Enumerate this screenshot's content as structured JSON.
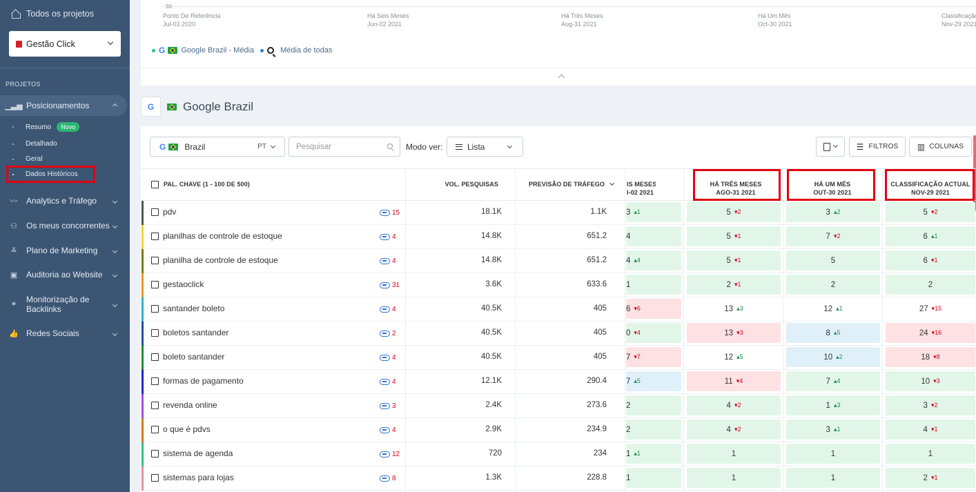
{
  "sidebar": {
    "all_projects": "Todos os projetos",
    "project_name": "Gestão Click",
    "section_label": "PROJETOS",
    "nav": {
      "positions": "Posicionamentos",
      "analytics": "Analytics e Tráfego",
      "competitors": "Os meus concorrentes",
      "marketing": "Plano de Marketing",
      "audit": "Auditoria ao Website",
      "backlinks": "Monitorização de Backlinks",
      "social": "Redes Sociais"
    },
    "sub": {
      "summary": "Resumo",
      "summary_badge": "Novo",
      "detailed": "Detalhado",
      "general": "Geral",
      "historical": "Dados Históricos"
    }
  },
  "chart": {
    "y_tick": "50",
    "x_ticks": [
      {
        "label": "Ponto De Referência",
        "date": "Jul-03 2020"
      },
      {
        "label": "Há Seis Meses",
        "date": "Jun-02 2021"
      },
      {
        "label": "Há Três Meses",
        "date": "Aug-31 2021"
      },
      {
        "label": "Há Um Mês",
        "date": "Oct-30 2021"
      },
      {
        "label": "Classificação",
        "date": "Nov-29 2021"
      }
    ],
    "legend": {
      "google_label": "Google Brazil - Média",
      "average_label": "Média de todas"
    }
  },
  "engine": {
    "title": "Google Brazil",
    "g_letter": "G"
  },
  "toolbar": {
    "country": "Brazil",
    "lang": "PT",
    "search_placeholder": "Pesquisar",
    "view_mode_label": "Modo ver:",
    "view_mode_value": "Lista",
    "filters": "FILTROS",
    "columns": "COLUNAS"
  },
  "table": {
    "headers": {
      "keyword": "PAL. CHAVE (1 - 100 DE 500)",
      "volume": "VOL. PESQUISAS",
      "traffic": "PREVISÃO DE TRÁFEGO",
      "six_months": "IS MESES",
      "six_months_date": "I-02 2021",
      "three_months": "HÁ TRÊS MESES",
      "three_months_date": "AGO-31 2021",
      "one_month": "HÁ UM MÊS",
      "one_month_date": "OUT-30 2021",
      "current": "CLASSIFICAÇÃO ACTUAL",
      "current_date": "NOV-29 2021"
    },
    "rows": [
      {
        "kw": "pdv",
        "links": "15",
        "vol": "18.1K",
        "traffic": "1.1K",
        "bar": "#555555",
        "c6": {
          "v": "3",
          "d": "1",
          "dir": "up",
          "bg": "g"
        },
        "c3": {
          "v": "5",
          "d": "2",
          "dir": "dn",
          "bg": "g"
        },
        "c1": {
          "v": "3",
          "d": "2",
          "dir": "up",
          "bg": "g"
        },
        "cc": {
          "v": "5",
          "d": "2",
          "dir": "dn",
          "bg": "g"
        }
      },
      {
        "kw": "planilhas de controle de estoque",
        "links": "4",
        "vol": "14.8K",
        "traffic": "651.2",
        "bar": "#f2d22e",
        "c6": {
          "v": "4",
          "d": "",
          "dir": "",
          "bg": "g"
        },
        "c3": {
          "v": "5",
          "d": "1",
          "dir": "dn",
          "bg": "g"
        },
        "c1": {
          "v": "7",
          "d": "2",
          "dir": "dn",
          "bg": "g"
        },
        "cc": {
          "v": "6",
          "d": "1",
          "dir": "up",
          "bg": "g"
        }
      },
      {
        "kw": "planilha de controle de estoque",
        "links": "4",
        "vol": "14.8K",
        "traffic": "651.2",
        "bar": "#7a7a1e",
        "c6": {
          "v": "4",
          "d": "4",
          "dir": "up",
          "bg": "g"
        },
        "c3": {
          "v": "5",
          "d": "1",
          "dir": "dn",
          "bg": "g"
        },
        "c1": {
          "v": "5",
          "d": "",
          "dir": "",
          "bg": "g"
        },
        "cc": {
          "v": "6",
          "d": "1",
          "dir": "dn",
          "bg": "g"
        }
      },
      {
        "kw": "gestaoclick",
        "links": "31",
        "vol": "3.6K",
        "traffic": "633.6",
        "bar": "#f0951f",
        "c6": {
          "v": "1",
          "d": "",
          "dir": "",
          "bg": "g"
        },
        "c3": {
          "v": "2",
          "d": "1",
          "dir": "dn",
          "bg": "g"
        },
        "c1": {
          "v": "2",
          "d": "",
          "dir": "",
          "bg": "g"
        },
        "cc": {
          "v": "2",
          "d": "",
          "dir": "",
          "bg": "g"
        }
      },
      {
        "kw": "santander boleto",
        "links": "4",
        "vol": "40.5K",
        "traffic": "405",
        "bar": "#25b5c9",
        "c6": {
          "v": "6",
          "d": "6",
          "dir": "dn",
          "bg": "r"
        },
        "c3": {
          "v": "13",
          "d": "3",
          "dir": "up",
          "bg": ""
        },
        "c1": {
          "v": "12",
          "d": "1",
          "dir": "up",
          "bg": ""
        },
        "cc": {
          "v": "27",
          "d": "15",
          "dir": "dn",
          "bg": ""
        }
      },
      {
        "kw": "boletos santander",
        "links": "2",
        "vol": "40.5K",
        "traffic": "405",
        "bar": "#1f4fa3",
        "c6": {
          "v": "0",
          "d": "4",
          "dir": "dn",
          "bg": "g"
        },
        "c3": {
          "v": "13",
          "d": "3",
          "dir": "dn",
          "bg": "r"
        },
        "c1": {
          "v": "8",
          "d": "5",
          "dir": "up",
          "bg": "b"
        },
        "cc": {
          "v": "24",
          "d": "16",
          "dir": "dn",
          "bg": "r"
        }
      },
      {
        "kw": "boleto santander",
        "links": "4",
        "vol": "40.5K",
        "traffic": "405",
        "bar": "#1e8a2e",
        "c6": {
          "v": "7",
          "d": "7",
          "dir": "dn",
          "bg": "r"
        },
        "c3": {
          "v": "12",
          "d": "5",
          "dir": "up",
          "bg": ""
        },
        "c1": {
          "v": "10",
          "d": "2",
          "dir": "up",
          "bg": "b"
        },
        "cc": {
          "v": "18",
          "d": "8",
          "dir": "dn",
          "bg": "r"
        }
      },
      {
        "kw": "formas de pagamento",
        "links": "4",
        "vol": "12.1K",
        "traffic": "290.4",
        "bar": "#2222cc",
        "c6": {
          "v": "7",
          "d": "5",
          "dir": "up",
          "bg": "b"
        },
        "c3": {
          "v": "11",
          "d": "4",
          "dir": "dn",
          "bg": "r"
        },
        "c1": {
          "v": "7",
          "d": "4",
          "dir": "up",
          "bg": "g"
        },
        "cc": {
          "v": "10",
          "d": "3",
          "dir": "dn",
          "bg": "g"
        }
      },
      {
        "kw": "revenda online",
        "links": "3",
        "vol": "2.4K",
        "traffic": "273.6",
        "bar": "#a64ee0",
        "c6": {
          "v": "2",
          "d": "",
          "dir": "",
          "bg": "g"
        },
        "c3": {
          "v": "4",
          "d": "2",
          "dir": "dn",
          "bg": "g"
        },
        "c1": {
          "v": "1",
          "d": "3",
          "dir": "up",
          "bg": "g"
        },
        "cc": {
          "v": "3",
          "d": "2",
          "dir": "dn",
          "bg": "g"
        }
      },
      {
        "kw": "o que é pdvs",
        "links": "4",
        "vol": "2.9K",
        "traffic": "234.9",
        "bar": "#d0781e",
        "c6": {
          "v": "2",
          "d": "",
          "dir": "",
          "bg": "g"
        },
        "c3": {
          "v": "4",
          "d": "2",
          "dir": "dn",
          "bg": "g"
        },
        "c1": {
          "v": "3",
          "d": "1",
          "dir": "up",
          "bg": "g"
        },
        "cc": {
          "v": "4",
          "d": "1",
          "dir": "dn",
          "bg": "g"
        }
      },
      {
        "kw": "sistema de agenda",
        "links": "12",
        "vol": "720",
        "traffic": "234",
        "bar": "#2ec27e",
        "c6": {
          "v": "1",
          "d": "1",
          "dir": "up",
          "bg": "g"
        },
        "c3": {
          "v": "1",
          "d": "",
          "dir": "",
          "bg": "g"
        },
        "c1": {
          "v": "1",
          "d": "",
          "dir": "",
          "bg": "g"
        },
        "cc": {
          "v": "1",
          "d": "",
          "dir": "",
          "bg": "g"
        }
      },
      {
        "kw": "sistemas para lojas",
        "links": "8",
        "vol": "1.3K",
        "traffic": "228.8",
        "bar": "#e88fa0",
        "c6": {
          "v": "1",
          "d": "",
          "dir": "",
          "bg": "g"
        },
        "c3": {
          "v": "1",
          "d": "",
          "dir": "",
          "bg": "g"
        },
        "c1": {
          "v": "1",
          "d": "",
          "dir": "",
          "bg": "g"
        },
        "cc": {
          "v": "2",
          "d": "1",
          "dir": "dn",
          "bg": "g"
        }
      }
    ]
  }
}
